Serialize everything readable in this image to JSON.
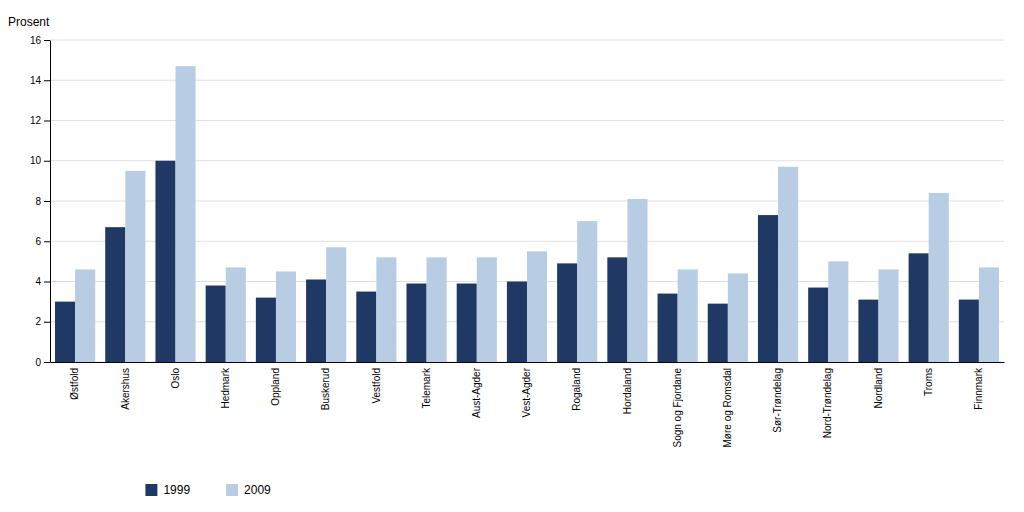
{
  "chart_data": {
    "type": "bar",
    "ylabel": "Prosent",
    "categories": [
      "Østfold",
      "Akershus",
      "Oslo",
      "Hedmark",
      "Oppland",
      "Buskerud",
      "Vestfold",
      "Telemark",
      "Aust-Agder",
      "Vest-Agder",
      "Rogaland",
      "Hordaland",
      "Sogn og Fjordane",
      "Møre og Romsdal",
      "Sør-Trøndelag",
      "Nord-Trøndelag",
      "Nordland",
      "Troms",
      "Finnmark"
    ],
    "series": [
      {
        "name": "1999",
        "color": "#1f3864",
        "values": [
          3.0,
          6.7,
          10.0,
          3.8,
          3.2,
          4.1,
          3.5,
          3.9,
          3.9,
          4.0,
          4.9,
          5.2,
          3.4,
          2.9,
          7.3,
          3.7,
          3.1,
          5.4,
          3.1
        ]
      },
      {
        "name": "2009",
        "color": "#b8cce4",
        "values": [
          4.6,
          9.5,
          14.7,
          4.7,
          4.5,
          5.7,
          5.2,
          5.2,
          5.2,
          5.5,
          7.0,
          8.1,
          4.6,
          4.4,
          9.7,
          5.0,
          4.6,
          8.4,
          4.7
        ]
      }
    ],
    "ylim": [
      0,
      16
    ],
    "yticks": [
      0,
      2,
      4,
      6,
      8,
      10,
      12,
      14,
      16
    ],
    "grid": true,
    "legend": "bottom"
  }
}
